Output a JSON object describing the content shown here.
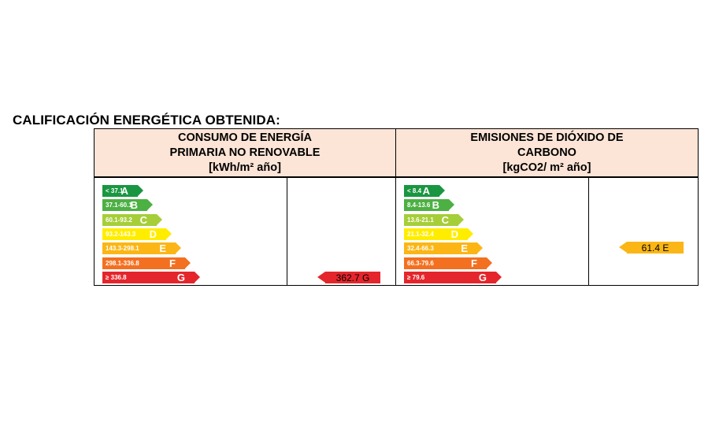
{
  "title": "CALIFICACIÓN ENERGÉTICA OBTENIDA:",
  "energy": {
    "header": [
      "CONSUMO DE ENERGÍA",
      "PRIMARIA NO RENOVABLE",
      "[kWh/m² año]"
    ],
    "bands": [
      {
        "range": "< 37.1",
        "letter": "A",
        "color": "#1a9641"
      },
      {
        "range": "37.1-60.1",
        "letter": "B",
        "color": "#4cb043"
      },
      {
        "range": "60.1-93.2",
        "letter": "C",
        "color": "#a6ce39"
      },
      {
        "range": "93.2-143.3",
        "letter": "D",
        "color": "#ffed00"
      },
      {
        "range": "143.3-298.1",
        "letter": "E",
        "color": "#fbb616"
      },
      {
        "range": "298.1-336.8",
        "letter": "F",
        "color": "#f37021"
      },
      {
        "range": "≥ 336.8",
        "letter": "G",
        "color": "#e4262c"
      }
    ],
    "result": {
      "value": "362.7 G",
      "letter": "G",
      "color": "#e4262c"
    }
  },
  "emissions": {
    "header": [
      "EMISIONES DE DIÓXIDO DE",
      "CARBONO",
      "[kgCO2/ m² año]"
    ],
    "bands": [
      {
        "range": "< 8.4",
        "letter": "A",
        "color": "#1a9641"
      },
      {
        "range": "8.4-13.6",
        "letter": "B",
        "color": "#4cb043"
      },
      {
        "range": "13.6-21.1",
        "letter": "C",
        "color": "#a6ce39"
      },
      {
        "range": "21.1-32.4",
        "letter": "D",
        "color": "#ffed00"
      },
      {
        "range": "32.4-66.3",
        "letter": "E",
        "color": "#fbb616"
      },
      {
        "range": "66.3-79.6",
        "letter": "F",
        "color": "#f37021"
      },
      {
        "range": "≥ 79.6",
        "letter": "G",
        "color": "#e4262c"
      }
    ],
    "result": {
      "value": "61.4 E",
      "letter": "E",
      "color": "#fbb616"
    }
  }
}
